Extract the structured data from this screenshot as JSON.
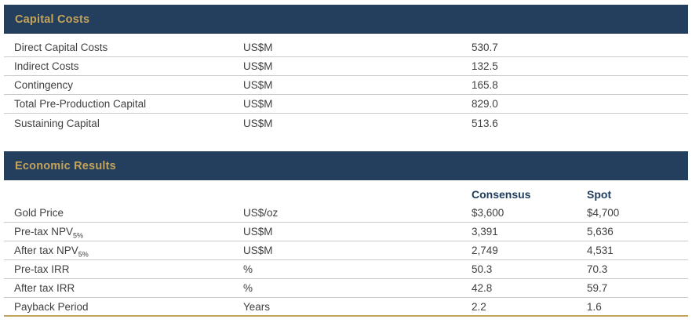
{
  "theme": {
    "header_bg": "#243f5e",
    "header_text": "#c5a459",
    "column_header_text": "#1e3a5c",
    "body_text": "#3f3f3f",
    "divider": "#c9c9c9",
    "bottom_rule": "#c2a35c"
  },
  "capital_costs": {
    "title": "Capital Costs",
    "rows": [
      {
        "label": "Direct Capital Costs",
        "unit": "US$M",
        "value": "530.7"
      },
      {
        "label": "Indirect Costs",
        "unit": "US$M",
        "value": "132.5"
      },
      {
        "label": "Contingency",
        "unit": "US$M",
        "value": "165.8"
      },
      {
        "label": "Total Pre-Production Capital",
        "unit": "US$M",
        "value": "829.0"
      },
      {
        "label": "Sustaining Capital",
        "unit": "US$M",
        "value": "513.6"
      }
    ]
  },
  "economic_results": {
    "title": "Economic Results",
    "columns": {
      "consensus": "Consensus",
      "spot": "Spot"
    },
    "rows": [
      {
        "label": "Gold Price",
        "label_sub": "",
        "unit": "US$/oz",
        "consensus": "$3,600",
        "spot": "$4,700"
      },
      {
        "label": "Pre-tax NPV",
        "label_sub": "5%",
        "unit": "US$M",
        "consensus": "3,391",
        "spot": "5,636"
      },
      {
        "label": "After tax NPV",
        "label_sub": "5%",
        "unit": "US$M",
        "consensus": "2,749",
        "spot": "4,531"
      },
      {
        "label": "Pre-tax IRR",
        "label_sub": "",
        "unit": "%",
        "consensus": "50.3",
        "spot": "70.3"
      },
      {
        "label": "After tax IRR",
        "label_sub": "",
        "unit": "%",
        "consensus": "42.8",
        "spot": "59.7"
      },
      {
        "label": "Payback Period",
        "label_sub": "",
        "unit": "Years",
        "consensus": "2.2",
        "spot": "1.6"
      }
    ]
  }
}
